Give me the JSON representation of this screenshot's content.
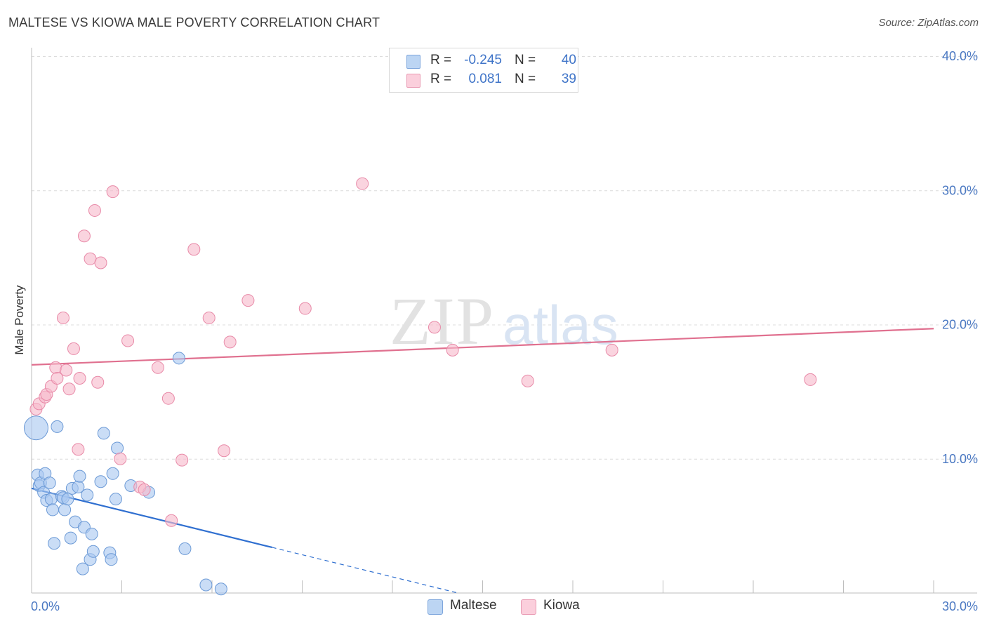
{
  "header": {
    "title": "MALTESE VS KIOWA MALE POVERTY CORRELATION CHART",
    "source": "Source: ZipAtlas.com"
  },
  "watermark": {
    "zip": "ZIP",
    "atlas": "atlas"
  },
  "legend": {
    "maltese": {
      "r_label": "R =",
      "r_value": "-0.245",
      "n_label": "N =",
      "n_value": "40",
      "color": "#a9c8f0"
    },
    "kiowa": {
      "r_label": "R =",
      "r_value": "0.081",
      "n_label": "N =",
      "n_value": "39",
      "color": "#f7b9cc"
    }
  },
  "bottom_legend": {
    "maltese": "Maltese",
    "kiowa": "Kiowa"
  },
  "chart_data": {
    "type": "scatter",
    "title": "MALTESE VS KIOWA MALE POVERTY CORRELATION CHART",
    "xlabel": "",
    "ylabel": "Male Poverty",
    "xlim": [
      0,
      30
    ],
    "ylim": [
      0,
      40
    ],
    "x_tick_labels": [
      "0.0%",
      "30.0%"
    ],
    "y_ticks": [
      10,
      20,
      30,
      40
    ],
    "y_tick_labels": [
      "10.0%",
      "20.0%",
      "30.0%",
      "40.0%"
    ],
    "grid": true,
    "series": [
      {
        "name": "Maltese",
        "color": "#a9c8f0",
        "stroke": "#6c9ad6",
        "trend_color": "#2f6fd0",
        "trend": {
          "x0": 0,
          "y0": 7.8,
          "x1": 8.0,
          "y1": 3.4,
          "dash_to_x": 14.2
        },
        "points": [
          {
            "x": 0.15,
            "y": 12.3,
            "big": true
          },
          {
            "x": 0.2,
            "y": 8.8
          },
          {
            "x": 0.25,
            "y": 8.0
          },
          {
            "x": 0.3,
            "y": 8.2
          },
          {
            "x": 0.4,
            "y": 7.5
          },
          {
            "x": 0.45,
            "y": 8.9
          },
          {
            "x": 0.5,
            "y": 6.9
          },
          {
            "x": 0.6,
            "y": 8.2
          },
          {
            "x": 0.65,
            "y": 7.0
          },
          {
            "x": 0.7,
            "y": 6.2
          },
          {
            "x": 0.75,
            "y": 3.7
          },
          {
            "x": 0.85,
            "y": 12.4
          },
          {
            "x": 1.0,
            "y": 7.2
          },
          {
            "x": 1.05,
            "y": 7.1
          },
          {
            "x": 1.1,
            "y": 6.2
          },
          {
            "x": 1.2,
            "y": 7.0
          },
          {
            "x": 1.3,
            "y": 4.1
          },
          {
            "x": 1.35,
            "y": 7.8
          },
          {
            "x": 1.45,
            "y": 5.3
          },
          {
            "x": 1.55,
            "y": 7.9
          },
          {
            "x": 1.6,
            "y": 8.7
          },
          {
            "x": 1.7,
            "y": 1.8
          },
          {
            "x": 1.75,
            "y": 4.9
          },
          {
            "x": 1.85,
            "y": 7.3
          },
          {
            "x": 1.95,
            "y": 2.5
          },
          {
            "x": 2.0,
            "y": 4.4
          },
          {
            "x": 2.05,
            "y": 3.1
          },
          {
            "x": 2.3,
            "y": 8.3
          },
          {
            "x": 2.4,
            "y": 11.9
          },
          {
            "x": 2.6,
            "y": 3.0
          },
          {
            "x": 2.65,
            "y": 2.5
          },
          {
            "x": 2.7,
            "y": 8.9
          },
          {
            "x": 2.8,
            "y": 7.0
          },
          {
            "x": 2.85,
            "y": 10.8
          },
          {
            "x": 3.3,
            "y": 8.0
          },
          {
            "x": 3.9,
            "y": 7.5
          },
          {
            "x": 4.9,
            "y": 17.5
          },
          {
            "x": 5.1,
            "y": 3.3
          },
          {
            "x": 5.8,
            "y": 0.6
          },
          {
            "x": 6.3,
            "y": 0.3
          }
        ]
      },
      {
        "name": "Kiowa",
        "color": "#f7b9cc",
        "stroke": "#e88aa8",
        "trend_color": "#e0708f",
        "trend": {
          "x0": 0,
          "y0": 17.0,
          "x1": 30.0,
          "y1": 19.7
        },
        "points": [
          {
            "x": 0.15,
            "y": 13.7
          },
          {
            "x": 0.25,
            "y": 14.1
          },
          {
            "x": 0.45,
            "y": 14.6
          },
          {
            "x": 0.5,
            "y": 14.8
          },
          {
            "x": 0.65,
            "y": 15.4
          },
          {
            "x": 0.8,
            "y": 16.8
          },
          {
            "x": 0.85,
            "y": 16.0
          },
          {
            "x": 1.05,
            "y": 20.5
          },
          {
            "x": 1.15,
            "y": 16.6
          },
          {
            "x": 1.25,
            "y": 15.2
          },
          {
            "x": 1.4,
            "y": 18.2
          },
          {
            "x": 1.55,
            "y": 10.7
          },
          {
            "x": 1.6,
            "y": 16.0
          },
          {
            "x": 1.75,
            "y": 26.6
          },
          {
            "x": 1.95,
            "y": 24.9
          },
          {
            "x": 2.1,
            "y": 28.5
          },
          {
            "x": 2.2,
            "y": 15.7
          },
          {
            "x": 2.3,
            "y": 24.6
          },
          {
            "x": 2.7,
            "y": 29.9
          },
          {
            "x": 2.95,
            "y": 10.0
          },
          {
            "x": 3.2,
            "y": 18.8
          },
          {
            "x": 3.6,
            "y": 7.9
          },
          {
            "x": 3.75,
            "y": 7.7
          },
          {
            "x": 4.2,
            "y": 16.8
          },
          {
            "x": 4.55,
            "y": 14.5
          },
          {
            "x": 4.65,
            "y": 5.4
          },
          {
            "x": 5.0,
            "y": 9.9
          },
          {
            "x": 5.4,
            "y": 25.6
          },
          {
            "x": 5.9,
            "y": 20.5
          },
          {
            "x": 6.4,
            "y": 10.6
          },
          {
            "x": 6.6,
            "y": 18.7
          },
          {
            "x": 7.2,
            "y": 21.8
          },
          {
            "x": 9.1,
            "y": 21.2
          },
          {
            "x": 11.0,
            "y": 30.5
          },
          {
            "x": 13.4,
            "y": 19.8
          },
          {
            "x": 14.0,
            "y": 18.1
          },
          {
            "x": 16.5,
            "y": 15.8
          },
          {
            "x": 19.3,
            "y": 18.1
          },
          {
            "x": 25.9,
            "y": 15.9
          }
        ]
      }
    ]
  }
}
